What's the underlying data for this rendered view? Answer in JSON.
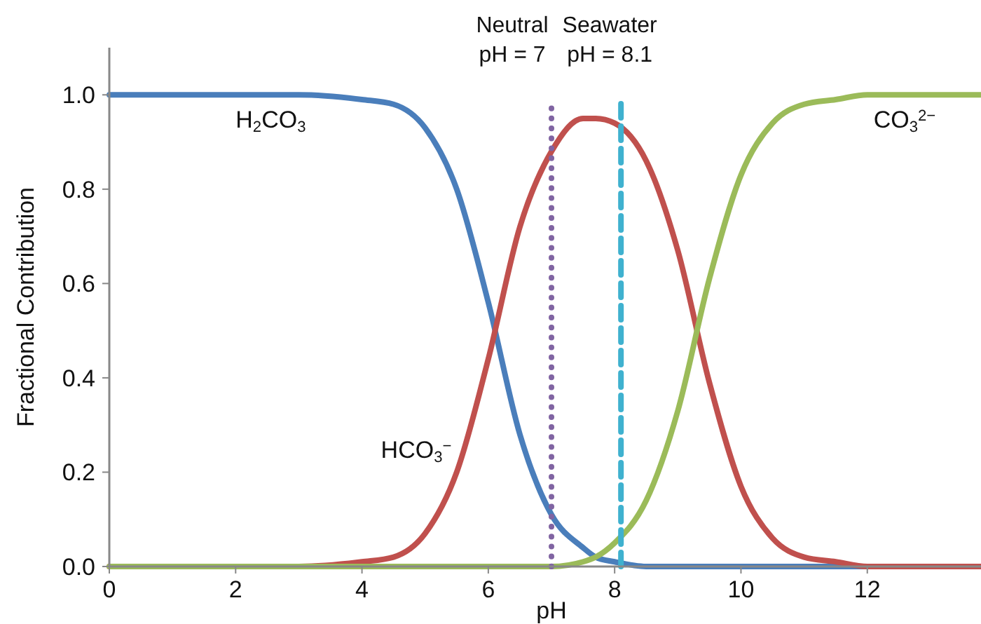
{
  "chart_data": {
    "type": "line",
    "xlabel": "pH",
    "ylabel": "Fractional Contribution",
    "x": [
      0,
      1,
      2,
      3,
      4,
      4.5,
      5,
      5.5,
      6,
      6.5,
      7,
      7.5,
      7.7,
      8,
      8.5,
      9,
      9.5,
      10,
      10.5,
      11,
      11.5,
      12,
      13,
      13.8
    ],
    "xlim": [
      0,
      13.8
    ],
    "xticks": [
      0,
      2,
      4,
      6,
      8,
      10,
      12
    ],
    "ylim": [
      0,
      1.1
    ],
    "yticks": [
      {
        "value": 0,
        "label": "0.0"
      },
      0.2,
      0.4,
      0.6,
      0.8,
      {
        "value": 1,
        "label": "1.0"
      }
    ],
    "grid": false,
    "legend": false,
    "marker": "none",
    "line_style": "solid",
    "series": [
      {
        "name": "H$_{2}$CO$_{3}$",
        "color": "#4a7ebb",
        "values": [
          1,
          1,
          1,
          1,
          0.99,
          0.98,
          0.93,
          0.8,
          0.56,
          0.28,
          0.11,
          0.04,
          0.02,
          0.01,
          0,
          0,
          0,
          0,
          0,
          0,
          0,
          0,
          0,
          0
        ]
      },
      {
        "name": "HCO$_{3}$$^{−}$",
        "color": "#c0504d",
        "values": [
          0,
          0,
          0,
          0,
          0.01,
          0.02,
          0.07,
          0.2,
          0.44,
          0.72,
          0.88,
          0.95,
          0.95,
          0.94,
          0.86,
          0.67,
          0.39,
          0.17,
          0.06,
          0.02,
          0.01,
          0,
          0,
          0
        ]
      },
      {
        "name": "CO$_{3}$$^{2−}$",
        "color": "#9bbb59",
        "values": [
          0,
          0,
          0,
          0,
          0,
          0,
          0,
          0,
          0,
          0,
          0,
          0.01,
          0.02,
          0.05,
          0.14,
          0.33,
          0.61,
          0.83,
          0.94,
          0.98,
          0.99,
          1,
          1,
          1
        ]
      }
    ],
    "ref_lines": [
      {
        "axis": "x",
        "value": 7,
        "label": "Neutral\npH = 7",
        "color": "#8064a2",
        "line_style": "dotted"
      },
      {
        "axis": "x",
        "value": 8.1,
        "label": "Seawater\npH = 8.1",
        "color": "#3fb1cf",
        "line_style": "dashed"
      }
    ]
  }
}
